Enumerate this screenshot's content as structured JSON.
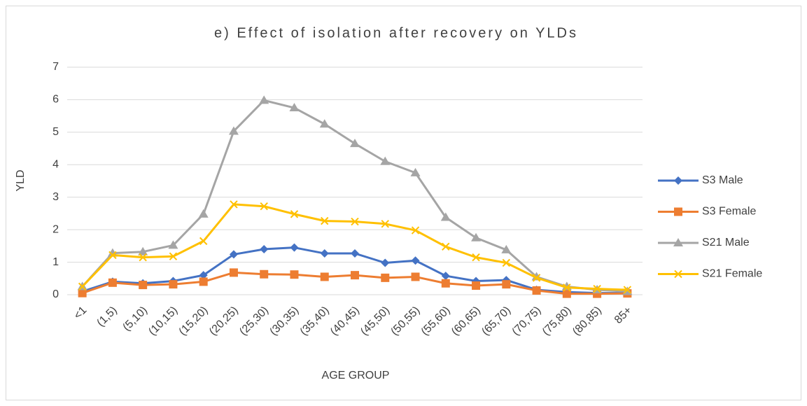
{
  "chart_data": {
    "type": "line",
    "title": "e) Effect of isolation after recovery on YLDs",
    "x_label": "AGE GROUP",
    "y_label": "YLD",
    "categories": [
      "<1",
      "(1,5)",
      "(5,10)",
      "(10,15)",
      "(15,20)",
      "(20,25)",
      "(25,30)",
      "(30,35)",
      "(35,40)",
      "(40,45)",
      "(45,50)",
      "(50,55)",
      "(55,60)",
      "(60,65)",
      "(65,70)",
      "(70,75)",
      "(75,80)",
      "(80,85)",
      "85+"
    ],
    "series": [
      {
        "name": "S3 Male",
        "color": "#4472c4",
        "marker": "diamond",
        "values": [
          0.1,
          0.4,
          0.35,
          0.42,
          0.6,
          1.24,
          1.4,
          1.45,
          1.27,
          1.27,
          0.98,
          1.05,
          0.58,
          0.42,
          0.45,
          0.15,
          0.08,
          0.05,
          0.05
        ]
      },
      {
        "name": "S3 Female",
        "color": "#ed7d31",
        "marker": "square",
        "values": [
          0.05,
          0.37,
          0.3,
          0.32,
          0.4,
          0.68,
          0.63,
          0.62,
          0.55,
          0.6,
          0.52,
          0.55,
          0.35,
          0.28,
          0.32,
          0.13,
          0.03,
          0.03,
          0.04
        ]
      },
      {
        "name": "S21 Male",
        "color": "#a5a5a5",
        "marker": "triangle",
        "values": [
          0.25,
          1.28,
          1.32,
          1.52,
          2.48,
          5.03,
          5.98,
          5.75,
          5.25,
          4.65,
          4.1,
          3.75,
          2.38,
          1.75,
          1.38,
          0.55,
          0.25,
          0.15,
          0.1
        ]
      },
      {
        "name": "S21 Female",
        "color": "#ffc000",
        "marker": "x",
        "values": [
          0.25,
          1.22,
          1.15,
          1.18,
          1.65,
          2.78,
          2.72,
          2.48,
          2.27,
          2.25,
          2.18,
          1.98,
          1.48,
          1.15,
          0.98,
          0.52,
          0.22,
          0.18,
          0.15
        ]
      }
    ],
    "ylim": [
      0,
      7
    ],
    "yticks": [
      0,
      1,
      2,
      3,
      4,
      5,
      6,
      7
    ],
    "grid": true,
    "legend": "right"
  }
}
